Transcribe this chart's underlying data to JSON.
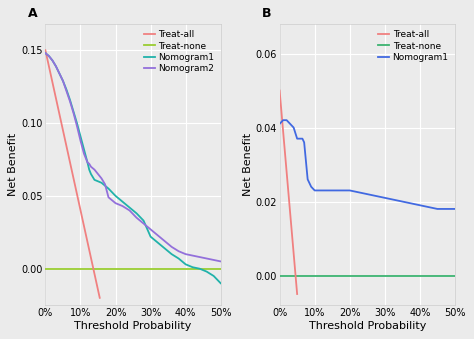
{
  "panel_A": {
    "label": "A",
    "xlim": [
      0,
      0.5
    ],
    "ylim": [
      -0.025,
      0.168
    ],
    "yticks": [
      0.0,
      0.05,
      0.1,
      0.15
    ],
    "xticks": [
      0,
      0.1,
      0.2,
      0.3,
      0.4,
      0.5
    ],
    "xlabel": "Threshold Probability",
    "ylabel": "Net Benefit",
    "treat_all": {
      "color": "#F08080",
      "x": [
        0.0,
        0.155
      ],
      "y": [
        0.15,
        -0.02
      ]
    },
    "treat_none": {
      "color": "#9acd32",
      "y": 0.0
    },
    "nomogram1": {
      "color": "#20B2AA",
      "x": [
        0.0,
        0.01,
        0.02,
        0.03,
        0.04,
        0.05,
        0.06,
        0.07,
        0.08,
        0.09,
        0.1,
        0.11,
        0.12,
        0.125,
        0.13,
        0.135,
        0.14,
        0.15,
        0.16,
        0.17,
        0.18,
        0.2,
        0.22,
        0.24,
        0.26,
        0.28,
        0.3,
        0.32,
        0.34,
        0.36,
        0.38,
        0.4,
        0.42,
        0.44,
        0.46,
        0.48,
        0.5
      ],
      "y": [
        0.148,
        0.146,
        0.143,
        0.139,
        0.134,
        0.129,
        0.123,
        0.116,
        0.108,
        0.1,
        0.091,
        0.082,
        0.073,
        0.068,
        0.065,
        0.063,
        0.061,
        0.06,
        0.059,
        0.057,
        0.055,
        0.05,
        0.046,
        0.042,
        0.038,
        0.033,
        0.022,
        0.018,
        0.014,
        0.01,
        0.007,
        0.003,
        0.001,
        0.0,
        -0.002,
        -0.005,
        -0.01
      ]
    },
    "nomogram2": {
      "color": "#9370DB",
      "x": [
        0.0,
        0.01,
        0.02,
        0.03,
        0.04,
        0.05,
        0.06,
        0.07,
        0.08,
        0.09,
        0.1,
        0.11,
        0.12,
        0.125,
        0.13,
        0.135,
        0.14,
        0.15,
        0.16,
        0.17,
        0.18,
        0.2,
        0.22,
        0.24,
        0.26,
        0.28,
        0.3,
        0.32,
        0.34,
        0.36,
        0.38,
        0.4,
        0.42,
        0.44,
        0.46,
        0.48,
        0.5
      ],
      "y": [
        0.148,
        0.146,
        0.143,
        0.139,
        0.134,
        0.129,
        0.122,
        0.115,
        0.107,
        0.098,
        0.088,
        0.079,
        0.073,
        0.072,
        0.07,
        0.069,
        0.068,
        0.065,
        0.062,
        0.058,
        0.049,
        0.045,
        0.043,
        0.04,
        0.035,
        0.031,
        0.027,
        0.023,
        0.019,
        0.015,
        0.012,
        0.01,
        0.009,
        0.008,
        0.007,
        0.006,
        0.005
      ]
    },
    "legend_labels": [
      "Treat-all",
      "Treat-none",
      "Nomogram1",
      "Nomogram2"
    ],
    "legend_colors": [
      "#F08080",
      "#9acd32",
      "#20B2AA",
      "#9370DB"
    ]
  },
  "panel_B": {
    "label": "B",
    "xlim": [
      0,
      0.5
    ],
    "ylim": [
      -0.008,
      0.068
    ],
    "yticks": [
      0.0,
      0.02,
      0.04,
      0.06
    ],
    "xticks": [
      0,
      0.1,
      0.2,
      0.3,
      0.4,
      0.5
    ],
    "xlabel": "Threshold Probability",
    "ylabel": "Net Benefit",
    "treat_all": {
      "color": "#F08080",
      "x": [
        0.0,
        0.05
      ],
      "y": [
        0.05,
        -0.005
      ]
    },
    "treat_none": {
      "color": "#3CB371",
      "y": 0.0
    },
    "nomogram1": {
      "color": "#4169E1",
      "x": [
        0.0,
        0.01,
        0.02,
        0.03,
        0.04,
        0.05,
        0.055,
        0.06,
        0.065,
        0.07,
        0.08,
        0.09,
        0.1,
        0.12,
        0.15,
        0.18,
        0.2,
        0.25,
        0.3,
        0.35,
        0.4,
        0.45,
        0.5
      ],
      "y": [
        0.041,
        0.042,
        0.042,
        0.041,
        0.04,
        0.037,
        0.037,
        0.037,
        0.037,
        0.036,
        0.026,
        0.024,
        0.023,
        0.023,
        0.023,
        0.023,
        0.023,
        0.022,
        0.021,
        0.02,
        0.019,
        0.018,
        0.018
      ]
    },
    "legend_labels": [
      "Treat-all",
      "Treat-none",
      "Nomogram1"
    ],
    "legend_colors": [
      "#F08080",
      "#3CB371",
      "#4169E1"
    ]
  },
  "bg_color": "#EBEBEB",
  "grid_color": "#FFFFFF",
  "spine_color": "#CCCCCC",
  "font_size": 8,
  "tick_font_size": 7,
  "label_font_size": 8
}
